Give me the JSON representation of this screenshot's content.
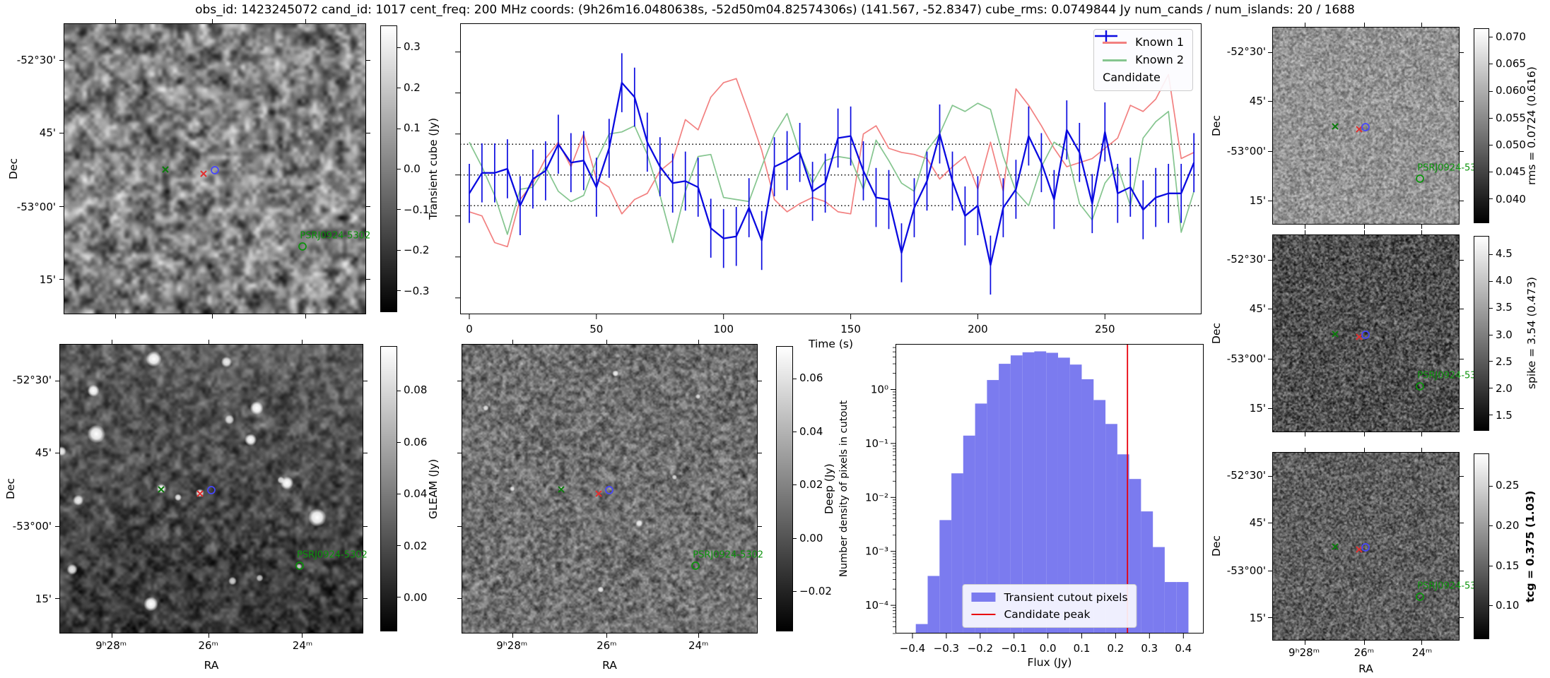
{
  "title": "obs_id: 1423245072 cand_id: 1017 cent_freq: 200 MHz coords: (9h26m16.0480638s, -52d50m04.82574306s) (141.567, -52.8347) cube_rms: 0.0749844 Jy num_cands / num_islands: 20 / 1688",
  "colors": {
    "known1": "#f28080",
    "known2": "#85c58f",
    "candidate": "#0a0ae0",
    "histogram_fill": "#7b7bef",
    "candidate_peak_line": "#e8000b",
    "marker_green": "#0c7a0c",
    "marker_red": "#e03030",
    "marker_blue": "#4646ff",
    "psr_green": "#0c930c"
  },
  "dec_axis": {
    "label": "Dec",
    "ticks": [
      {
        "t": "-52°30'",
        "f": 0.125
      },
      {
        "t": "45'",
        "f": 0.375
      },
      {
        "t": "-53°00'",
        "f": 0.63
      },
      {
        "t": "15'",
        "f": 0.88
      }
    ]
  },
  "ra_axis": {
    "label": "RA",
    "ticks": [
      {
        "t": "9ʰ28ᵐ",
        "f": 0.17
      },
      {
        "t": "26ᵐ",
        "f": 0.49
      },
      {
        "t": "24ᵐ",
        "f": 0.8
      }
    ]
  },
  "cutout_markers": [
    {
      "type": "x",
      "name": "known2-position-marker",
      "color": "#0c7a0c",
      "fx": 0.335,
      "fy": 0.503
    },
    {
      "type": "x",
      "name": "known1-position-marker",
      "color": "#e03030",
      "fx": 0.462,
      "fy": 0.518
    },
    {
      "type": "o",
      "name": "candidate-contour-marker",
      "color": "#4646ff",
      "fx": 0.499,
      "fy": 0.506
    },
    {
      "type": "o",
      "name": "psr-position-marker",
      "color": "#0c930c",
      "fx": 0.792,
      "fy": 0.768,
      "label": "PSRJ0924-5302"
    }
  ],
  "panels": {
    "transient": {
      "colorbar_label": "Transient cube (Jy)",
      "cb": {
        "range": [
          0.352,
          -0.352
        ],
        "ticks": [
          0.3,
          0.2,
          0.1,
          0.0,
          -0.1,
          -0.2,
          -0.3
        ],
        "labels": [
          "0.3",
          "0.2",
          "0.1",
          "0.0",
          "−0.1",
          "−0.2",
          "−0.3"
        ]
      }
    },
    "gleam": {
      "colorbar_label": "GLEAM (Jy)",
      "cb": {
        "range": [
          0.097,
          -0.013
        ],
        "ticks": [
          0.08,
          0.06,
          0.04,
          0.02,
          0.0
        ],
        "labels": [
          "0.08",
          "0.06",
          "0.04",
          "0.02",
          "0.00"
        ]
      }
    },
    "deep": {
      "colorbar_label": "Deep (Jy)",
      "cb": {
        "range": [
          0.072,
          -0.035
        ],
        "ticks": [
          0.06,
          0.04,
          0.02,
          0.0,
          -0.02
        ],
        "labels": [
          "0.06",
          "0.04",
          "0.02",
          "0.00",
          "−0.02"
        ]
      }
    },
    "rms": {
      "colorbar_label": "rms = 0.0724 (0.616)",
      "cb": {
        "range": [
          0.0715,
          0.0355
        ],
        "ticks": [
          0.07,
          0.065,
          0.06,
          0.055,
          0.05,
          0.045,
          0.04
        ],
        "labels": [
          "0.070",
          "0.065",
          "0.060",
          "0.055",
          "0.050",
          "0.045",
          "0.040"
        ]
      }
    },
    "spike": {
      "colorbar_label": "spike = 3.54 (0.473)",
      "cb": {
        "range": [
          4.83,
          1.21
        ],
        "ticks": [
          4.5,
          4.0,
          3.5,
          3.0,
          2.5,
          2.0,
          1.5
        ],
        "labels": [
          "4.5",
          "4.0",
          "3.5",
          "3.0",
          "2.5",
          "2.0",
          "1.5"
        ]
      }
    },
    "tcg": {
      "colorbar_label": "tcg = 0.375 (1.03)",
      "cb": {
        "range": [
          0.29,
          0.058
        ],
        "ticks": [
          0.25,
          0.2,
          0.15,
          0.1
        ],
        "labels": [
          "0.25",
          "0.20",
          "0.15",
          "0.10"
        ]
      }
    }
  },
  "chart_data": [
    {
      "type": "line",
      "title": "",
      "xlabel": "Time (s)",
      "ylabel": "Transient cube (Jy)",
      "xlim": [
        -3.6,
        288
      ],
      "ylim": [
        -0.34,
        0.37
      ],
      "xticks": [
        0,
        50,
        100,
        150,
        200,
        250
      ],
      "yticks": [
        -0.3,
        -0.2,
        -0.1,
        0.0,
        0.1,
        0.2,
        0.3
      ],
      "hlines": [
        0.0749844,
        0.0,
        -0.0749844
      ],
      "legend_position": "upper right",
      "grid": false,
      "x": [
        0,
        5,
        10,
        15,
        20,
        25,
        30,
        35,
        40,
        45,
        50,
        55,
        60,
        65,
        70,
        75,
        80,
        85,
        90,
        95,
        100,
        105,
        110,
        115,
        120,
        125,
        130,
        135,
        140,
        145,
        150,
        155,
        160,
        165,
        170,
        175,
        180,
        185,
        190,
        195,
        200,
        205,
        210,
        215,
        220,
        225,
        230,
        235,
        240,
        245,
        250,
        255,
        260,
        265,
        270,
        275,
        280,
        285
      ],
      "series": [
        {
          "name": "Known 1",
          "color": "#f28080",
          "values": [
            -0.09,
            -0.1,
            -0.165,
            -0.175,
            -0.06,
            -0.02,
            0.04,
            0.08,
            0.02,
            0.1,
            -0.01,
            -0.03,
            -0.095,
            -0.06,
            -0.045,
            0.01,
            0.035,
            0.135,
            0.11,
            0.19,
            0.225,
            0.235,
            0.15,
            0.06,
            -0.06,
            -0.09,
            -0.07,
            -0.055,
            -0.065,
            -0.09,
            -0.095,
            0.1,
            0.12,
            0.065,
            0.055,
            0.05,
            0.04,
            -0.01,
            0.02,
            0.045,
            -0.035,
            0.08,
            -0.04,
            0.21,
            0.17,
            0.12,
            0.065,
            0.02,
            0.03,
            0.04,
            0.065,
            0.09,
            0.17,
            0.155,
            0.185,
            0.245,
            0.04,
            0.055
          ]
        },
        {
          "name": "Known 2",
          "color": "#85c58f",
          "values": [
            0.08,
            0.02,
            -0.05,
            -0.145,
            -0.035,
            -0.03,
            0.02,
            -0.04,
            -0.065,
            -0.05,
            0.035,
            0.1,
            0.105,
            0.12,
            0.05,
            -0.05,
            -0.165,
            -0.04,
            0.045,
            0.05,
            -0.055,
            -0.06,
            -0.065,
            0.02,
            0.1,
            0.15,
            0.055,
            -0.02,
            0.035,
            0.045,
            0.04,
            -0.035,
            0.085,
            0.035,
            -0.02,
            -0.04,
            0.06,
            0.1,
            0.17,
            0.155,
            0.175,
            0.16,
            0.045,
            -0.04,
            -0.075,
            0.02,
            0.08,
            0.06,
            -0.07,
            -0.11,
            -0.02,
            0.02,
            -0.075,
            0.09,
            0.13,
            0.155,
            -0.14,
            -0.04
          ]
        },
        {
          "name": "Candidate",
          "color": "#0a0ae0",
          "yerr": 0.072,
          "values": [
            -0.045,
            0.005,
            0.005,
            0.015,
            -0.075,
            -0.01,
            0.01,
            0.075,
            0.03,
            0.035,
            -0.03,
            0.065,
            0.225,
            0.19,
            0.08,
            0.02,
            -0.02,
            -0.015,
            -0.03,
            -0.13,
            -0.155,
            -0.15,
            -0.08,
            -0.16,
            0.02,
            0.035,
            0.055,
            -0.04,
            -0.02,
            0.09,
            0.095,
            0.01,
            -0.055,
            -0.06,
            -0.19,
            -0.08,
            -0.015,
            0.1,
            -0.015,
            -0.1,
            -0.075,
            -0.22,
            -0.08,
            -0.035,
            0.095,
            0.03,
            -0.06,
            0.11,
            0.055,
            -0.07,
            0.105,
            -0.045,
            -0.03,
            -0.085,
            -0.055,
            -0.045,
            -0.045,
            0.03
          ]
        }
      ]
    },
    {
      "type": "bar",
      "title": "",
      "xlabel": "Flux (Jy)",
      "ylabel": "Number density of pixels in cutout",
      "yscale": "log",
      "xlim": [
        -0.45,
        0.46
      ],
      "ylim": [
        3e-05,
        7
      ],
      "xticks": [
        -0.4,
        -0.3,
        -0.2,
        -0.1,
        0.0,
        0.1,
        0.2,
        0.3,
        0.4
      ],
      "yticks": [
        1,
        0.1,
        0.01,
        0.001,
        0.0001
      ],
      "ytick_labels": [
        "10⁰",
        "10⁻¹",
        "10⁻²",
        "10⁻³",
        "10⁻⁴"
      ],
      "bar_color": "#7b7bef",
      "bin_start": -0.39,
      "bin_width": 0.035,
      "values": [
        4.5e-05,
        0.00035,
        0.0038,
        0.028,
        0.14,
        0.55,
        1.5,
        3.0,
        4.3,
        4.9,
        5.1,
        4.8,
        3.9,
        2.9,
        1.55,
        0.64,
        0.23,
        0.063,
        0.022,
        0.0055,
        0.0012,
        0.00027,
        0.00027
      ],
      "vline": {
        "x": 0.235,
        "color": "#e8000b"
      },
      "legend": [
        "Transient cutout pixels",
        "Candidate peak"
      ],
      "legend_position": "lower center"
    }
  ]
}
